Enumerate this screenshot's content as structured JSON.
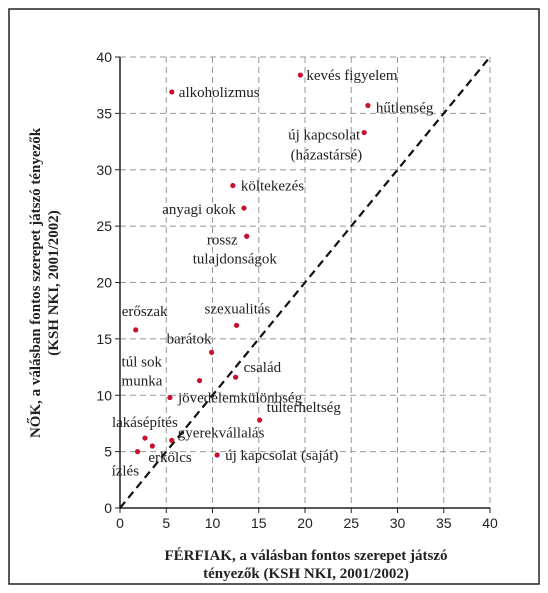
{
  "chart_data": {
    "type": "scatter",
    "ylabel": [
      "NŐK, a válásban fontos szerepet játszó tényezők",
      "(KSH NKI, 2001/2002)"
    ],
    "xlabel": [
      "FÉRFIAK, a válásban fontos szerepet játszó",
      "tényezők (KSH NKI, 2001/2002)"
    ],
    "xlim": [
      0,
      40
    ],
    "ylim": [
      0,
      40
    ],
    "xticks": [
      0,
      5,
      10,
      15,
      20,
      25,
      30,
      35,
      40
    ],
    "yticks": [
      0,
      5,
      10,
      15,
      20,
      25,
      30,
      35,
      40
    ],
    "grid": true,
    "color": "#c8102e",
    "diagonal": true,
    "series": [
      {
        "labels": [
          "kevés figyelem",
          "alkoholizmus",
          "hűtlenség",
          [
            "új kapcsolat",
            "(házastársé)"
          ],
          "költekezés",
          "anyagi okok",
          [
            "rossz",
            "tulajdonságok"
          ],
          "erőszak",
          "szexualitás",
          "barátok",
          [
            "túl sok",
            "munka"
          ],
          "család",
          "jövedelemkülönbség",
          "túlterheltség",
          "lakásépítés",
          "gyerekvállalás",
          "erkölcs",
          "új kapcsolat (saját)",
          "ízlés"
        ],
        "x": [
          19.5,
          5.6,
          26.8,
          26.4,
          12.2,
          13.4,
          13.7,
          1.7,
          12.6,
          9.9,
          8.6,
          12.5,
          5.4,
          15.1,
          2.7,
          5.6,
          3.5,
          10.5,
          1.9
        ],
        "values": [
          38.4,
          36.9,
          35.7,
          33.3,
          28.6,
          26.6,
          24.1,
          15.8,
          16.2,
          13.8,
          11.3,
          11.6,
          9.8,
          7.8,
          6.2,
          6.0,
          5.5,
          4.7,
          5.0
        ]
      }
    ]
  }
}
